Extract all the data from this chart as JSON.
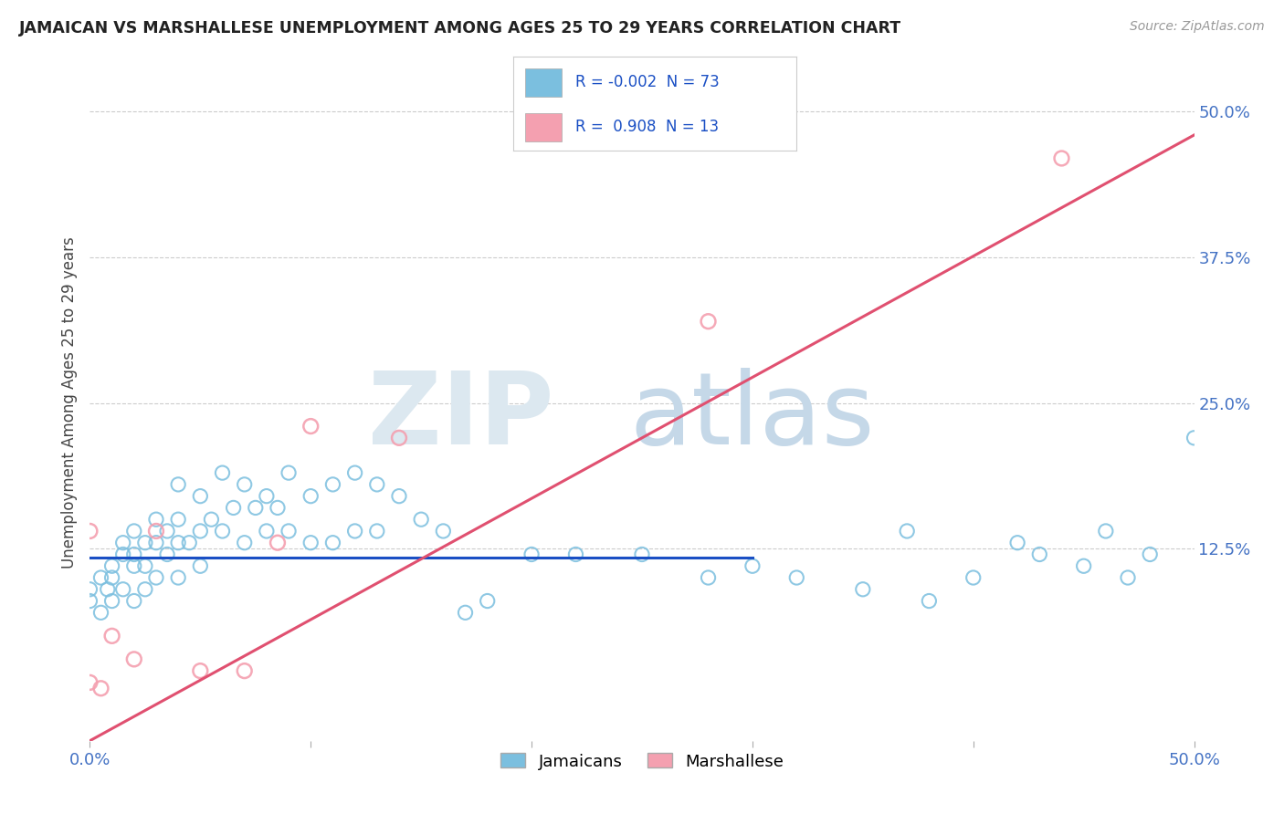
{
  "title": "JAMAICAN VS MARSHALLESE UNEMPLOYMENT AMONG AGES 25 TO 29 YEARS CORRELATION CHART",
  "source": "Source: ZipAtlas.com",
  "ylabel": "Unemployment Among Ages 25 to 29 years",
  "xlim": [
    0.0,
    0.5
  ],
  "ylim": [
    -0.04,
    0.54
  ],
  "jamaican_color": "#7bbfdf",
  "marshallese_color": "#f4a0b0",
  "jamaican_line_color": "#1a4fc4",
  "marshallese_line_color": "#e05070",
  "R_jamaican": -0.002,
  "N_jamaican": 73,
  "R_marshallese": 0.908,
  "N_marshallese": 13,
  "background_color": "#ffffff",
  "grid_color": "#cccccc",
  "watermark_zip_color": "#dce8f0",
  "watermark_atlas_color": "#c5d8e8",
  "jamaican_x": [
    0.0,
    0.0,
    0.005,
    0.005,
    0.008,
    0.01,
    0.01,
    0.01,
    0.015,
    0.015,
    0.015,
    0.02,
    0.02,
    0.02,
    0.02,
    0.025,
    0.025,
    0.025,
    0.03,
    0.03,
    0.03,
    0.035,
    0.035,
    0.04,
    0.04,
    0.04,
    0.04,
    0.045,
    0.05,
    0.05,
    0.05,
    0.055,
    0.06,
    0.06,
    0.065,
    0.07,
    0.07,
    0.075,
    0.08,
    0.08,
    0.085,
    0.09,
    0.09,
    0.1,
    0.1,
    0.11,
    0.11,
    0.12,
    0.12,
    0.13,
    0.13,
    0.14,
    0.15,
    0.16,
    0.17,
    0.18,
    0.2,
    0.22,
    0.25,
    0.28,
    0.3,
    0.32,
    0.35,
    0.37,
    0.38,
    0.4,
    0.42,
    0.43,
    0.45,
    0.46,
    0.47,
    0.48,
    0.5
  ],
  "jamaican_y": [
    0.09,
    0.08,
    0.1,
    0.07,
    0.09,
    0.11,
    0.1,
    0.08,
    0.13,
    0.12,
    0.09,
    0.14,
    0.12,
    0.11,
    0.08,
    0.13,
    0.11,
    0.09,
    0.15,
    0.13,
    0.1,
    0.14,
    0.12,
    0.18,
    0.15,
    0.13,
    0.1,
    0.13,
    0.17,
    0.14,
    0.11,
    0.15,
    0.19,
    0.14,
    0.16,
    0.18,
    0.13,
    0.16,
    0.17,
    0.14,
    0.16,
    0.19,
    0.14,
    0.17,
    0.13,
    0.18,
    0.13,
    0.19,
    0.14,
    0.18,
    0.14,
    0.17,
    0.15,
    0.14,
    0.07,
    0.08,
    0.12,
    0.12,
    0.12,
    0.1,
    0.11,
    0.1,
    0.09,
    0.14,
    0.08,
    0.1,
    0.13,
    0.12,
    0.11,
    0.14,
    0.1,
    0.12,
    0.22
  ],
  "marshallese_x": [
    0.0,
    0.0,
    0.005,
    0.01,
    0.02,
    0.03,
    0.05,
    0.07,
    0.085,
    0.1,
    0.14,
    0.28,
    0.44
  ],
  "marshallese_y": [
    0.14,
    0.01,
    0.005,
    0.05,
    0.03,
    0.14,
    0.02,
    0.02,
    0.13,
    0.23,
    0.22,
    0.32,
    0.46
  ],
  "jamaican_line_x": [
    0.0,
    0.3
  ],
  "jamaican_line_y": [
    0.117,
    0.117
  ],
  "marshallese_line_x": [
    0.0,
    0.5
  ],
  "marshallese_line_y_intercept": -0.04,
  "marshallese_line_slope": 1.04
}
